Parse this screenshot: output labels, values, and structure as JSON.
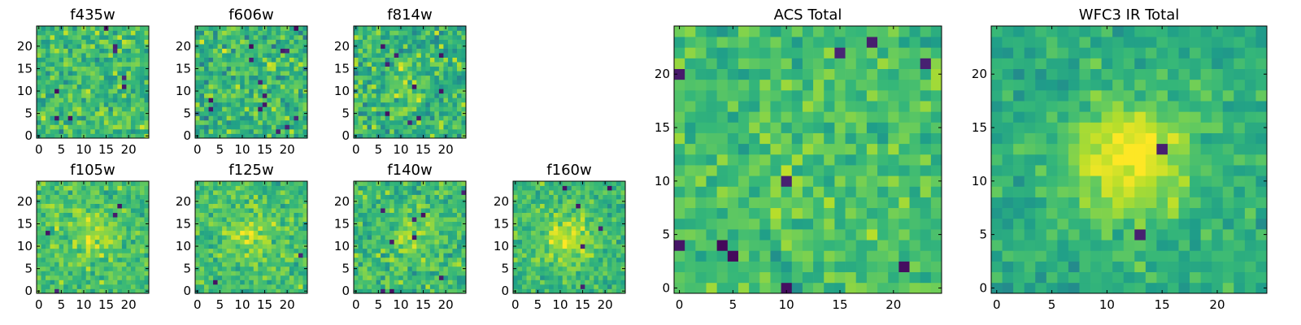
{
  "colormap": "viridis",
  "colors": {
    "viridis": [
      "#440154",
      "#482878",
      "#3e4989",
      "#31688e",
      "#26828e",
      "#1f9e89",
      "#35b779",
      "#6ece58",
      "#b5de2b",
      "#fde725"
    ]
  },
  "chart_data": [
    {
      "type": "heatmap",
      "title": "f435w",
      "grid_size": 25,
      "xlim": [
        -0.5,
        24.5
      ],
      "ylim": [
        -0.5,
        24.5
      ],
      "xticks": [
        0,
        5,
        10,
        15,
        20
      ],
      "yticks": [
        0,
        5,
        10,
        15,
        20
      ],
      "xticklabels": [
        "0",
        "5",
        "10",
        "15",
        "20"
      ],
      "yticklabels": [
        "0",
        "5",
        "10",
        "15",
        "20"
      ],
      "value_range": [
        0,
        1
      ],
      "mean": 0.68,
      "spread": 0.2,
      "peak": 0.0,
      "seed": 11,
      "dark_frac": 0.015
    },
    {
      "type": "heatmap",
      "title": "f606w",
      "grid_size": 25,
      "xlim": [
        -0.5,
        24.5
      ],
      "ylim": [
        -0.5,
        24.5
      ],
      "xticks": [
        0,
        5,
        10,
        15,
        20
      ],
      "yticks": [
        0,
        5,
        10,
        15,
        20
      ],
      "xticklabels": [
        "0",
        "5",
        "10",
        "15",
        "20"
      ],
      "yticklabels": [
        "0",
        "5",
        "10",
        "15",
        "20"
      ],
      "value_range": [
        0,
        1
      ],
      "mean": 0.66,
      "spread": 0.22,
      "peak": 0.05,
      "seed": 23,
      "dark_frac": 0.02
    },
    {
      "type": "heatmap",
      "title": "f814w",
      "grid_size": 25,
      "xlim": [
        -0.5,
        24.5
      ],
      "ylim": [
        -0.5,
        24.5
      ],
      "xticks": [
        0,
        5,
        10,
        15,
        20
      ],
      "yticks": [
        0,
        5,
        10,
        15,
        20
      ],
      "xticklabels": [
        "0",
        "5",
        "10",
        "15",
        "20"
      ],
      "yticklabels": [
        "0",
        "5",
        "10",
        "15",
        "20"
      ],
      "value_range": [
        0,
        1
      ],
      "mean": 0.66,
      "spread": 0.22,
      "peak": 0.1,
      "seed": 37,
      "dark_frac": 0.02
    },
    {
      "type": "heatmap",
      "title": "f105w",
      "grid_size": 25,
      "xlim": [
        -0.5,
        24.5
      ],
      "ylim": [
        -0.5,
        24.5
      ],
      "xticks": [
        0,
        5,
        10,
        15,
        20
      ],
      "yticks": [
        0,
        5,
        10,
        15,
        20
      ],
      "xticklabels": [
        "0",
        "5",
        "10",
        "15",
        "20"
      ],
      "yticklabels": [
        "0",
        "5",
        "10",
        "15",
        "20"
      ],
      "value_range": [
        0,
        1
      ],
      "mean": 0.7,
      "spread": 0.15,
      "peak": 0.15,
      "seed": 41,
      "dark_frac": 0.008
    },
    {
      "type": "heatmap",
      "title": "f125w",
      "grid_size": 25,
      "xlim": [
        -0.5,
        24.5
      ],
      "ylim": [
        -0.5,
        24.5
      ],
      "xticks": [
        0,
        5,
        10,
        15,
        20
      ],
      "yticks": [
        0,
        5,
        10,
        15,
        20
      ],
      "xticklabels": [
        "0",
        "5",
        "10",
        "15",
        "20"
      ],
      "yticklabels": [
        "0",
        "5",
        "10",
        "15",
        "20"
      ],
      "value_range": [
        0,
        1
      ],
      "mean": 0.7,
      "spread": 0.16,
      "peak": 0.15,
      "seed": 53,
      "dark_frac": 0.012
    },
    {
      "type": "heatmap",
      "title": "f140w",
      "grid_size": 25,
      "xlim": [
        -0.5,
        24.5
      ],
      "ylim": [
        -0.5,
        24.5
      ],
      "xticks": [
        0,
        5,
        10,
        15,
        20
      ],
      "yticks": [
        0,
        5,
        10,
        15,
        20
      ],
      "xticklabels": [
        "0",
        "5",
        "10",
        "15",
        "20"
      ],
      "yticklabels": [
        "0",
        "5",
        "10",
        "15",
        "20"
      ],
      "value_range": [
        0,
        1
      ],
      "mean": 0.68,
      "spread": 0.17,
      "peak": 0.15,
      "seed": 67,
      "dark_frac": 0.012
    },
    {
      "type": "heatmap",
      "title": "f160w",
      "grid_size": 25,
      "xlim": [
        -0.5,
        24.5
      ],
      "ylim": [
        -0.5,
        24.5
      ],
      "xticks": [
        0,
        5,
        10,
        15,
        20
      ],
      "yticks": [
        0,
        5,
        10,
        15,
        20
      ],
      "xticklabels": [
        "0",
        "5",
        "10",
        "15",
        "20"
      ],
      "yticklabels": [
        "0",
        "5",
        "10",
        "15",
        "20"
      ],
      "value_range": [
        0,
        1
      ],
      "mean": 0.68,
      "spread": 0.15,
      "peak": 0.22,
      "seed": 79,
      "dark_frac": 0.015
    },
    {
      "type": "heatmap",
      "title": "ACS Total",
      "grid_size": 25,
      "xlim": [
        -0.5,
        24.5
      ],
      "ylim": [
        -0.5,
        24.5
      ],
      "xticks": [
        0,
        5,
        10,
        15,
        20
      ],
      "yticks": [
        0,
        5,
        10,
        15,
        20
      ],
      "xticklabels": [
        "0",
        "5",
        "10",
        "15",
        "20"
      ],
      "yticklabels": [
        "0",
        "5",
        "10",
        "15",
        "20"
      ],
      "value_range": [
        0,
        1
      ],
      "mean": 0.7,
      "spread": 0.15,
      "peak": 0.05,
      "seed": 83,
      "dark_frac": 0.012
    },
    {
      "type": "heatmap",
      "title": "WFC3 IR Total",
      "grid_size": 25,
      "xlim": [
        -0.5,
        24.5
      ],
      "ylim": [
        -0.5,
        24.5
      ],
      "xticks": [
        0,
        5,
        10,
        15,
        20
      ],
      "yticks": [
        0,
        5,
        10,
        15,
        20
      ],
      "xticklabels": [
        "0",
        "5",
        "10",
        "15",
        "20"
      ],
      "yticklabels": [
        "0",
        "5",
        "10",
        "15",
        "20"
      ],
      "value_range": [
        0,
        1
      ],
      "mean": 0.62,
      "spread": 0.12,
      "peak": 0.38,
      "seed": 97,
      "dark_frac": 0.006
    }
  ]
}
